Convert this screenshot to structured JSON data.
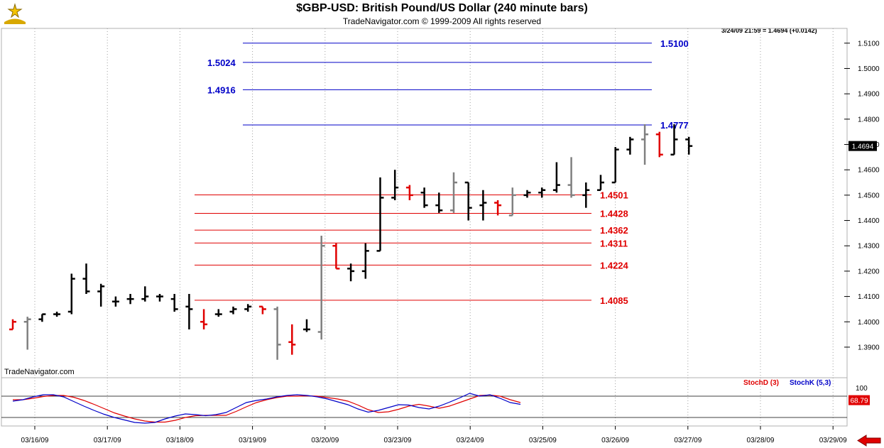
{
  "header": {
    "title": "$GBP-USD:  British Pound/US Dollar  (240 minute bars)",
    "subtitle": "TradeNavigator.com © 1999-2009 All rights reserved",
    "quote": "3/24/09 21:59 = 1.4694 (+0.0142)",
    "watermark": "TradeNavigator.com"
  },
  "colors": {
    "up_bar": "#000000",
    "down_bar": "#e00000",
    "neutral_bar": "#808080",
    "resistance": "#0000c8",
    "support": "#e00000",
    "stoch_d": "#e00000",
    "stoch_k": "#0000c8",
    "last_price_box": "#000000"
  },
  "chart_data": [
    {
      "type": "ohlc",
      "name": "price-panel",
      "ylim": [
        1.385,
        1.514
      ],
      "y_ticks": [
        "1.3900",
        "1.4000",
        "1.4100",
        "1.4200",
        "1.4300",
        "1.4400",
        "1.4500",
        "1.4600",
        "1.4700",
        "1.4800",
        "1.4900",
        "1.5000",
        "1.5100"
      ],
      "x_ticks": [
        "03/16/09",
        "03/17/09",
        "03/18/09",
        "03/19/09",
        "03/20/09",
        "03/23/09",
        "03/24/09",
        "03/25/09",
        "03/26/09",
        "03/27/09",
        "03/28/09",
        "03/29/09"
      ],
      "last_price": "1.4694",
      "bars": [
        {
          "x": 0.0,
          "o": 1.397,
          "h": 1.401,
          "l": 1.397,
          "c": 1.4,
          "color": "red"
        },
        {
          "x": 0.4,
          "o": 1.4,
          "h": 1.402,
          "l": 1.389,
          "c": 1.401,
          "color": "gray"
        },
        {
          "x": 0.8,
          "o": 1.401,
          "h": 1.403,
          "l": 1.4,
          "c": 1.403,
          "color": "black"
        },
        {
          "x": 1.2,
          "o": 1.403,
          "h": 1.404,
          "l": 1.402,
          "c": 1.403,
          "color": "black"
        },
        {
          "x": 1.6,
          "o": 1.404,
          "h": 1.419,
          "l": 1.403,
          "c": 1.417,
          "color": "black"
        },
        {
          "x": 2.0,
          "o": 1.417,
          "h": 1.423,
          "l": 1.411,
          "c": 1.412,
          "color": "black"
        },
        {
          "x": 2.4,
          "o": 1.412,
          "h": 1.415,
          "l": 1.406,
          "c": 1.414,
          "color": "black"
        },
        {
          "x": 2.8,
          "o": 1.408,
          "h": 1.41,
          "l": 1.406,
          "c": 1.408,
          "color": "black"
        },
        {
          "x": 3.2,
          "o": 1.409,
          "h": 1.411,
          "l": 1.407,
          "c": 1.409,
          "color": "black"
        },
        {
          "x": 3.6,
          "o": 1.409,
          "h": 1.414,
          "l": 1.408,
          "c": 1.41,
          "color": "black"
        },
        {
          "x": 4.0,
          "o": 1.41,
          "h": 1.411,
          "l": 1.408,
          "c": 1.41,
          "color": "black"
        },
        {
          "x": 4.4,
          "o": 1.409,
          "h": 1.411,
          "l": 1.404,
          "c": 1.405,
          "color": "black"
        },
        {
          "x": 4.8,
          "o": 1.406,
          "h": 1.411,
          "l": 1.397,
          "c": 1.405,
          "color": "black"
        },
        {
          "x": 5.2,
          "o": 1.4,
          "h": 1.405,
          "l": 1.397,
          "c": 1.399,
          "color": "red"
        },
        {
          "x": 5.6,
          "o": 1.403,
          "h": 1.405,
          "l": 1.402,
          "c": 1.403,
          "color": "black"
        },
        {
          "x": 6.0,
          "o": 1.404,
          "h": 1.406,
          "l": 1.403,
          "c": 1.405,
          "color": "black"
        },
        {
          "x": 6.4,
          "o": 1.405,
          "h": 1.407,
          "l": 1.404,
          "c": 1.406,
          "color": "black"
        },
        {
          "x": 6.8,
          "o": 1.406,
          "h": 1.406,
          "l": 1.403,
          "c": 1.405,
          "color": "red"
        },
        {
          "x": 7.2,
          "o": 1.405,
          "h": 1.406,
          "l": 1.385,
          "c": 1.391,
          "color": "gray"
        },
        {
          "x": 7.6,
          "o": 1.392,
          "h": 1.399,
          "l": 1.387,
          "c": 1.391,
          "color": "red"
        },
        {
          "x": 8.0,
          "o": 1.397,
          "h": 1.401,
          "l": 1.396,
          "c": 1.397,
          "color": "black"
        },
        {
          "x": 8.4,
          "o": 1.396,
          "h": 1.434,
          "l": 1.393,
          "c": 1.43,
          "color": "gray"
        },
        {
          "x": 8.8,
          "o": 1.43,
          "h": 1.431,
          "l": 1.421,
          "c": 1.421,
          "color": "red"
        },
        {
          "x": 9.2,
          "o": 1.421,
          "h": 1.423,
          "l": 1.416,
          "c": 1.42,
          "color": "black"
        },
        {
          "x": 9.6,
          "o": 1.42,
          "h": 1.431,
          "l": 1.417,
          "c": 1.428,
          "color": "black"
        },
        {
          "x": 10.0,
          "o": 1.428,
          "h": 1.457,
          "l": 1.428,
          "c": 1.449,
          "color": "black"
        },
        {
          "x": 10.4,
          "o": 1.449,
          "h": 1.46,
          "l": 1.448,
          "c": 1.453,
          "color": "black"
        },
        {
          "x": 10.8,
          "o": 1.453,
          "h": 1.454,
          "l": 1.448,
          "c": 1.45,
          "color": "red"
        },
        {
          "x": 11.2,
          "o": 1.451,
          "h": 1.453,
          "l": 1.445,
          "c": 1.446,
          "color": "black"
        },
        {
          "x": 11.6,
          "o": 1.446,
          "h": 1.451,
          "l": 1.443,
          "c": 1.444,
          "color": "black"
        },
        {
          "x": 12.0,
          "o": 1.444,
          "h": 1.459,
          "l": 1.443,
          "c": 1.455,
          "color": "gray"
        },
        {
          "x": 12.4,
          "o": 1.455,
          "h": 1.455,
          "l": 1.44,
          "c": 1.445,
          "color": "black"
        },
        {
          "x": 12.8,
          "o": 1.446,
          "h": 1.452,
          "l": 1.44,
          "c": 1.447,
          "color": "black"
        },
        {
          "x": 13.2,
          "o": 1.447,
          "h": 1.448,
          "l": 1.442,
          "c": 1.446,
          "color": "red"
        },
        {
          "x": 13.6,
          "o": 1.442,
          "h": 1.453,
          "l": 1.442,
          "c": 1.45,
          "color": "gray"
        },
        {
          "x": 14.0,
          "o": 1.45,
          "h": 1.452,
          "l": 1.449,
          "c": 1.451,
          "color": "black"
        },
        {
          "x": 14.4,
          "o": 1.451,
          "h": 1.453,
          "l": 1.449,
          "c": 1.452,
          "color": "black"
        },
        {
          "x": 14.8,
          "o": 1.452,
          "h": 1.463,
          "l": 1.451,
          "c": 1.454,
          "color": "black"
        },
        {
          "x": 15.2,
          "o": 1.454,
          "h": 1.465,
          "l": 1.449,
          "c": 1.45,
          "color": "gray"
        },
        {
          "x": 15.6,
          "o": 1.45,
          "h": 1.455,
          "l": 1.445,
          "c": 1.452,
          "color": "black"
        },
        {
          "x": 16.0,
          "o": 1.452,
          "h": 1.458,
          "l": 1.452,
          "c": 1.455,
          "color": "black"
        },
        {
          "x": 16.4,
          "o": 1.455,
          "h": 1.469,
          "l": 1.455,
          "c": 1.468,
          "color": "black"
        },
        {
          "x": 16.8,
          "o": 1.468,
          "h": 1.473,
          "l": 1.466,
          "c": 1.472,
          "color": "black"
        },
        {
          "x": 17.2,
          "o": 1.472,
          "h": 1.478,
          "l": 1.462,
          "c": 1.474,
          "color": "gray"
        },
        {
          "x": 17.6,
          "o": 1.474,
          "h": 1.475,
          "l": 1.465,
          "c": 1.466,
          "color": "red"
        },
        {
          "x": 18.0,
          "o": 1.466,
          "h": 1.478,
          "l": 1.466,
          "c": 1.472,
          "color": "black"
        },
        {
          "x": 18.4,
          "o": 1.472,
          "h": 1.473,
          "l": 1.466,
          "c": 1.4694,
          "color": "black"
        }
      ]
    },
    {
      "type": "line",
      "name": "levels",
      "resistance": [
        {
          "value": 1.51,
          "label": "1.5100",
          "label_side": "right"
        },
        {
          "value": 1.5024,
          "label": "1.5024",
          "label_side": "left"
        },
        {
          "value": 1.4916,
          "label": "1.4916",
          "label_side": "left"
        },
        {
          "value": 1.4777,
          "label": "1.4777",
          "label_side": "right"
        }
      ],
      "support": [
        {
          "value": 1.4501,
          "label": "1.4501"
        },
        {
          "value": 1.4428,
          "label": "1.4428"
        },
        {
          "value": 1.4362,
          "label": "1.4362"
        },
        {
          "value": 1.4311,
          "label": "1.4311"
        },
        {
          "value": 1.4224,
          "label": "1.4224"
        },
        {
          "value": 1.4085,
          "label": "1.4085"
        }
      ]
    },
    {
      "type": "line",
      "name": "stochastics",
      "ylim": [
        0,
        100
      ],
      "y_ticks": [
        "100"
      ],
      "reference_lines": [
        80,
        20
      ],
      "current_value": "68.79",
      "legend": {
        "d": "StochD (3)",
        "k": "StochK (5,3)"
      },
      "series": [
        {
          "name": "StochD (3)",
          "color": "red",
          "values": [
            70,
            70,
            74,
            79,
            82,
            82,
            77,
            68,
            57,
            45,
            33,
            24,
            16,
            10,
            7,
            7,
            12,
            20,
            25,
            26,
            26,
            26,
            37,
            50,
            62,
            70,
            76,
            80,
            80,
            81,
            80,
            76,
            72,
            66,
            55,
            42,
            34,
            36,
            43,
            52,
            57,
            52,
            46,
            52,
            62,
            72,
            82,
            83,
            80,
            70,
            62
          ]
        },
        {
          "name": "StochK (5,3)",
          "color": "blue",
          "values": [
            66,
            70,
            78,
            84,
            84,
            78,
            65,
            52,
            40,
            29,
            20,
            13,
            6,
            4,
            6,
            16,
            24,
            30,
            28,
            25,
            28,
            34,
            48,
            62,
            68,
            72,
            78,
            82,
            84,
            82,
            78,
            72,
            64,
            56,
            44,
            35,
            40,
            48,
            56,
            55,
            48,
            44,
            52,
            63,
            75,
            88,
            80,
            84,
            74,
            62,
            57
          ]
        }
      ]
    }
  ]
}
